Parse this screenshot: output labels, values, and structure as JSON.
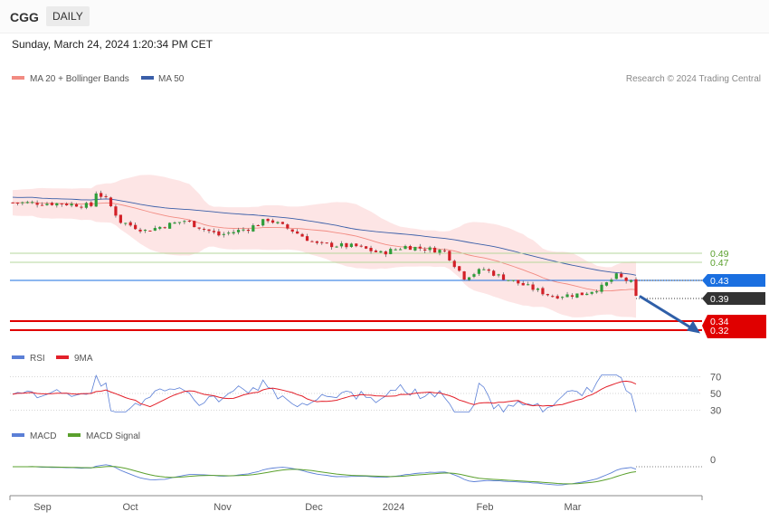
{
  "header": {
    "ticker": "CGG",
    "period": "DAILY",
    "datetime": "Sunday, March 24, 2024 1:20:34 PM CET"
  },
  "legend_main": [
    {
      "label": "MA 20 + Bollinger Bands",
      "color": "#f28b82"
    },
    {
      "label": "MA 50",
      "color": "#3a5ea8"
    }
  ],
  "credit": "Research © 2024 Trading Central",
  "legend_rsi": [
    {
      "label": "RSI",
      "color": "#5b7fd6"
    },
    {
      "label": "9MA",
      "color": "#e3202a"
    }
  ],
  "legend_macd": [
    {
      "label": "MACD",
      "color": "#5b7fd6"
    },
    {
      "label": "MACD Signal",
      "color": "#5aa02c"
    }
  ],
  "x_labels": [
    "Sep",
    "Oct",
    "Nov",
    "Dec",
    "2024",
    "Feb",
    "Mar"
  ],
  "chart_data": {
    "type": "candlestick",
    "price_axis_min": 0.31,
    "price_axis_max": 0.695,
    "levels": [
      {
        "value": 0.49,
        "label": "0.49",
        "kind": "resistance",
        "color": "#5aa02c"
      },
      {
        "value": 0.47,
        "label": "0.47",
        "kind": "resistance",
        "color": "#5aa02c"
      },
      {
        "value": 0.43,
        "label": "0.43",
        "kind": "pivot",
        "color": "#1a6fe0"
      },
      {
        "value": 0.39,
        "label": "0.39",
        "kind": "last",
        "color": "#333333"
      },
      {
        "value": 0.34,
        "label": "0.34",
        "kind": "support",
        "color": "#e00000"
      },
      {
        "value": 0.32,
        "label": "0.32",
        "kind": "support",
        "color": "#e00000"
      }
    ],
    "projection": {
      "from": 0.394,
      "to": 0.325,
      "direction": "down"
    },
    "rsi": {
      "levels": [
        70,
        50,
        30
      ]
    },
    "macd": {
      "levels": [
        0
      ]
    }
  }
}
